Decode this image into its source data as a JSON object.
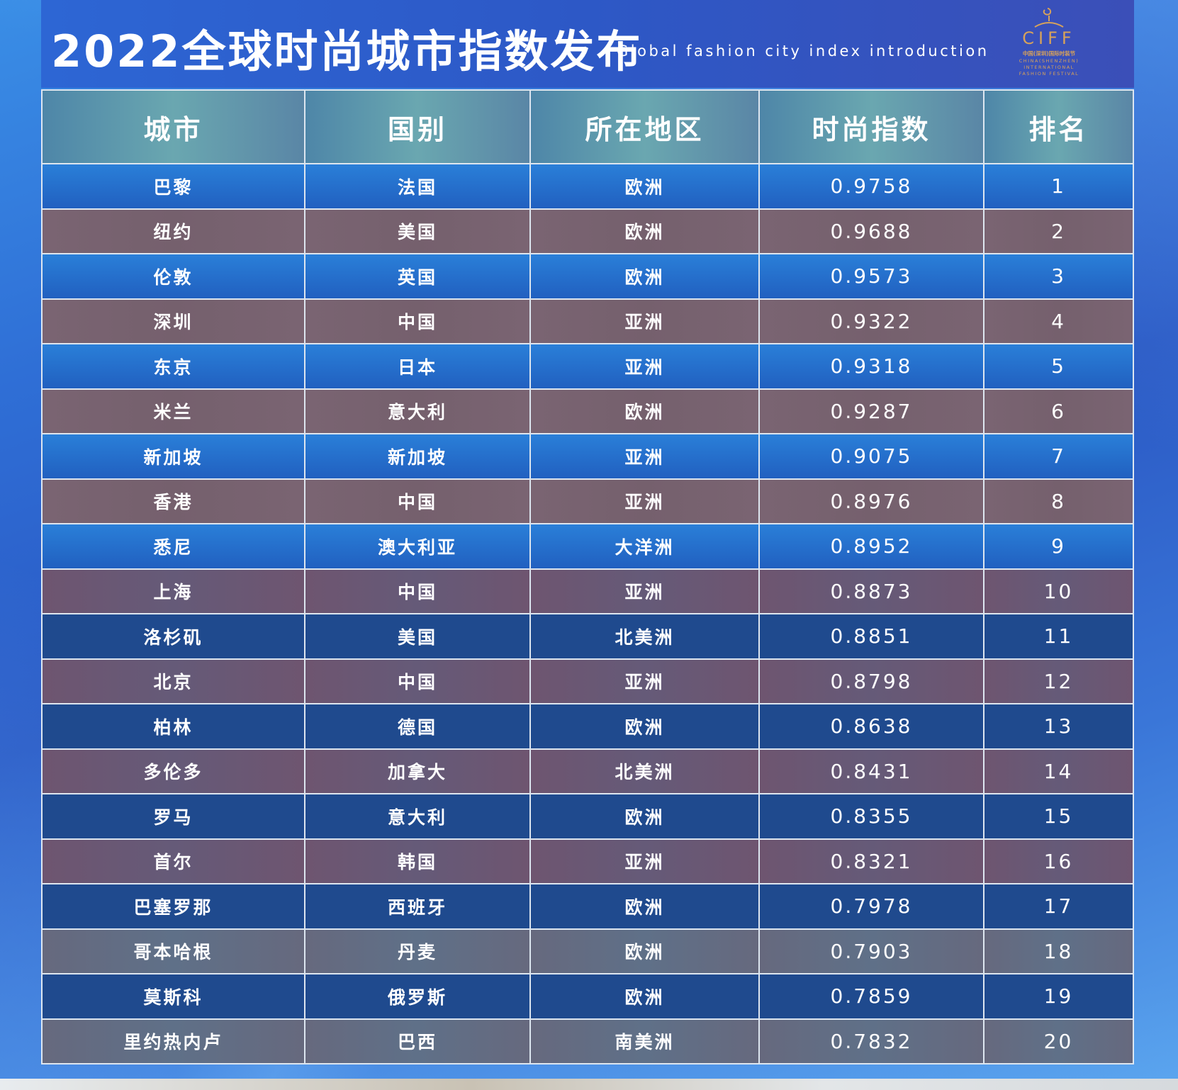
{
  "header": {
    "title": "2022全球时尚城市指数发布",
    "subtitle": "Global fashion city index introduction"
  },
  "logo": {
    "wordmark": "CIFF",
    "line1": "中国(深圳)国际时装节",
    "line2": "CHINA(SHENZHEN)",
    "line3": "INTERNATIONAL",
    "line4": "FASHION FESTIVAL",
    "accent_color": "#d7a25a"
  },
  "table": {
    "columns": [
      "城市",
      "国别",
      "所在地区",
      "时尚指数",
      "排名"
    ],
    "rows": [
      {
        "city": "巴黎",
        "country": "法国",
        "region": "欧洲",
        "index": "0.9758",
        "rank": "1"
      },
      {
        "city": "纽约",
        "country": "美国",
        "region": "欧洲",
        "index": "0.9688",
        "rank": "2"
      },
      {
        "city": "伦敦",
        "country": "英国",
        "region": "欧洲",
        "index": "0.9573",
        "rank": "3"
      },
      {
        "city": "深圳",
        "country": "中国",
        "region": "亚洲",
        "index": "0.9322",
        "rank": "4"
      },
      {
        "city": "东京",
        "country": "日本",
        "region": "亚洲",
        "index": "0.9318",
        "rank": "5"
      },
      {
        "city": "米兰",
        "country": "意大利",
        "region": "欧洲",
        "index": "0.9287",
        "rank": "6"
      },
      {
        "city": "新加坡",
        "country": "新加坡",
        "region": "亚洲",
        "index": "0.9075",
        "rank": "7"
      },
      {
        "city": "香港",
        "country": "中国",
        "region": "亚洲",
        "index": "0.8976",
        "rank": "8"
      },
      {
        "city": "悉尼",
        "country": "澳大利亚",
        "region": "大洋洲",
        "index": "0.8952",
        "rank": "9"
      },
      {
        "city": "上海",
        "country": "中国",
        "region": "亚洲",
        "index": "0.8873",
        "rank": "10"
      },
      {
        "city": "洛杉矶",
        "country": "美国",
        "region": "北美洲",
        "index": "0.8851",
        "rank": "11"
      },
      {
        "city": "北京",
        "country": "中国",
        "region": "亚洲",
        "index": "0.8798",
        "rank": "12"
      },
      {
        "city": "柏林",
        "country": "德国",
        "region": "欧洲",
        "index": "0.8638",
        "rank": "13"
      },
      {
        "city": "多伦多",
        "country": "加拿大",
        "region": "北美洲",
        "index": "0.8431",
        "rank": "14"
      },
      {
        "city": "罗马",
        "country": "意大利",
        "region": "欧洲",
        "index": "0.8355",
        "rank": "15"
      },
      {
        "city": "首尔",
        "country": "韩国",
        "region": "亚洲",
        "index": "0.8321",
        "rank": "16"
      },
      {
        "city": "巴塞罗那",
        "country": "西班牙",
        "region": "欧洲",
        "index": "0.7978",
        "rank": "17"
      },
      {
        "city": "哥本哈根",
        "country": "丹麦",
        "region": "欧洲",
        "index": "0.7903",
        "rank": "18"
      },
      {
        "city": "莫斯科",
        "country": "俄罗斯",
        "region": "欧洲",
        "index": "0.7859",
        "rank": "19"
      },
      {
        "city": "里约热内卢",
        "country": "巴西",
        "region": "南美洲",
        "index": "0.7832",
        "rank": "20"
      }
    ]
  }
}
